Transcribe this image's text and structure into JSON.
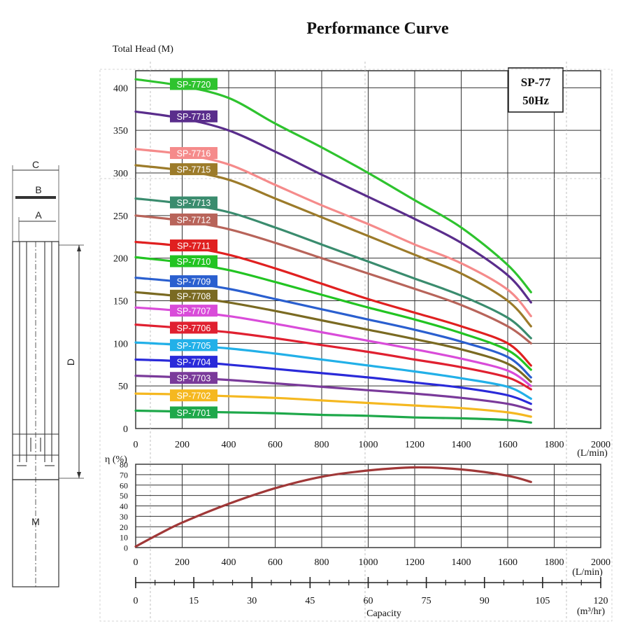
{
  "chart_data": [
    {
      "type": "line",
      "title": "Performance Curve",
      "ylabel": "Total Head (M)",
      "xunit": "(L/min)",
      "xlim": [
        0,
        2000
      ],
      "ylim": [
        0,
        420
      ],
      "xticks": [
        0,
        200,
        400,
        600,
        800,
        1000,
        1200,
        1400,
        1600,
        1800,
        2000
      ],
      "yticks": [
        0,
        50,
        100,
        150,
        200,
        250,
        300,
        350,
        400
      ],
      "grid": true,
      "model_box": [
        "SP-77",
        "50Hz"
      ],
      "x": [
        0,
        200,
        400,
        600,
        800,
        1000,
        1200,
        1400,
        1600,
        1700
      ],
      "series": [
        {
          "name": "SP-7720",
          "color": "#2ec32e",
          "values": [
            410,
            402,
            388,
            358,
            330,
            300,
            268,
            236,
            192,
            160
          ]
        },
        {
          "name": "SP-7718",
          "color": "#5a2d8c",
          "values": [
            372,
            364,
            350,
            325,
            298,
            272,
            246,
            218,
            180,
            148
          ]
        },
        {
          "name": "SP-7716",
          "color": "#f58b8b",
          "values": [
            328,
            322,
            310,
            286,
            262,
            240,
            216,
            194,
            163,
            132
          ]
        },
        {
          "name": "SP-7715",
          "color": "#9c7b2a",
          "values": [
            309,
            303,
            292,
            270,
            248,
            226,
            204,
            182,
            150,
            120
          ]
        },
        {
          "name": "SP-7713",
          "color": "#3a8c6e",
          "values": [
            270,
            264,
            254,
            236,
            216,
            196,
            176,
            156,
            130,
            106
          ]
        },
        {
          "name": "SP-7712",
          "color": "#b8645a",
          "values": [
            250,
            244,
            234,
            218,
            200,
            182,
            164,
            145,
            120,
            100
          ]
        },
        {
          "name": "SP-7711",
          "color": "#e02020",
          "values": [
            219,
            214,
            204,
            188,
            170,
            152,
            136,
            120,
            100,
            74
          ]
        },
        {
          "name": "SP-7710",
          "color": "#22c422",
          "values": [
            201,
            195,
            186,
            172,
            157,
            142,
            128,
            112,
            92,
            69
          ]
        },
        {
          "name": "SP-7709",
          "color": "#2a5fcf",
          "values": [
            177,
            172,
            164,
            152,
            140,
            128,
            116,
            102,
            84,
            60
          ]
        },
        {
          "name": "SP-7708",
          "color": "#7a6a22",
          "values": [
            160,
            155,
            148,
            138,
            127,
            116,
            105,
            93,
            76,
            55
          ]
        },
        {
          "name": "SP-7707",
          "color": "#d94cd9",
          "values": [
            142,
            138,
            132,
            123,
            113,
            103,
            93,
            82,
            68,
            50
          ]
        },
        {
          "name": "SP-7706",
          "color": "#e02030",
          "values": [
            122,
            118,
            113,
            106,
            98,
            90,
            81,
            72,
            60,
            46
          ]
        },
        {
          "name": "SP-7705",
          "color": "#22b0e8",
          "values": [
            101,
            98,
            94,
            88,
            81,
            74,
            67,
            59,
            49,
            35
          ]
        },
        {
          "name": "SP-7704",
          "color": "#2a2ad9",
          "values": [
            81,
            79,
            75,
            70,
            65,
            60,
            54,
            48,
            39,
            29
          ]
        },
        {
          "name": "SP-7703",
          "color": "#7a3a9a",
          "values": [
            62,
            60,
            57,
            53,
            49,
            45,
            41,
            36,
            29,
            22
          ]
        },
        {
          "name": "SP-7702",
          "color": "#f5b820",
          "values": [
            41,
            40,
            38,
            36,
            33,
            30,
            27,
            24,
            19,
            14
          ]
        },
        {
          "name": "SP-7701",
          "color": "#1ea84a",
          "values": [
            21,
            20,
            19,
            18,
            16,
            15,
            13,
            12,
            10,
            7
          ]
        }
      ]
    },
    {
      "type": "line",
      "ylabel": "η (%)",
      "xunit": "(L/min)",
      "xlim": [
        0,
        2000
      ],
      "ylim": [
        0,
        80
      ],
      "xticks": [
        0,
        200,
        400,
        600,
        800,
        1000,
        1200,
        1400,
        1600,
        1800,
        2000
      ],
      "yticks": [
        0,
        10,
        20,
        30,
        40,
        50,
        60,
        70,
        80
      ],
      "grid": true,
      "color": "#a03838",
      "x": [
        0,
        100,
        200,
        400,
        600,
        800,
        1000,
        1200,
        1400,
        1600,
        1700
      ],
      "values": [
        1,
        13,
        24,
        42,
        57,
        68,
        74,
        77,
        75,
        69,
        63
      ]
    },
    {
      "type": "axis",
      "xlabel": "Capacity",
      "xunit": "(m³/hr)",
      "xlim": [
        0,
        120
      ],
      "xticks": [
        0,
        15,
        30,
        45,
        60,
        75,
        90,
        105,
        120
      ]
    }
  ],
  "pump_drawing": {
    "labels": [
      "C",
      "B",
      "A",
      "D",
      "M"
    ]
  }
}
